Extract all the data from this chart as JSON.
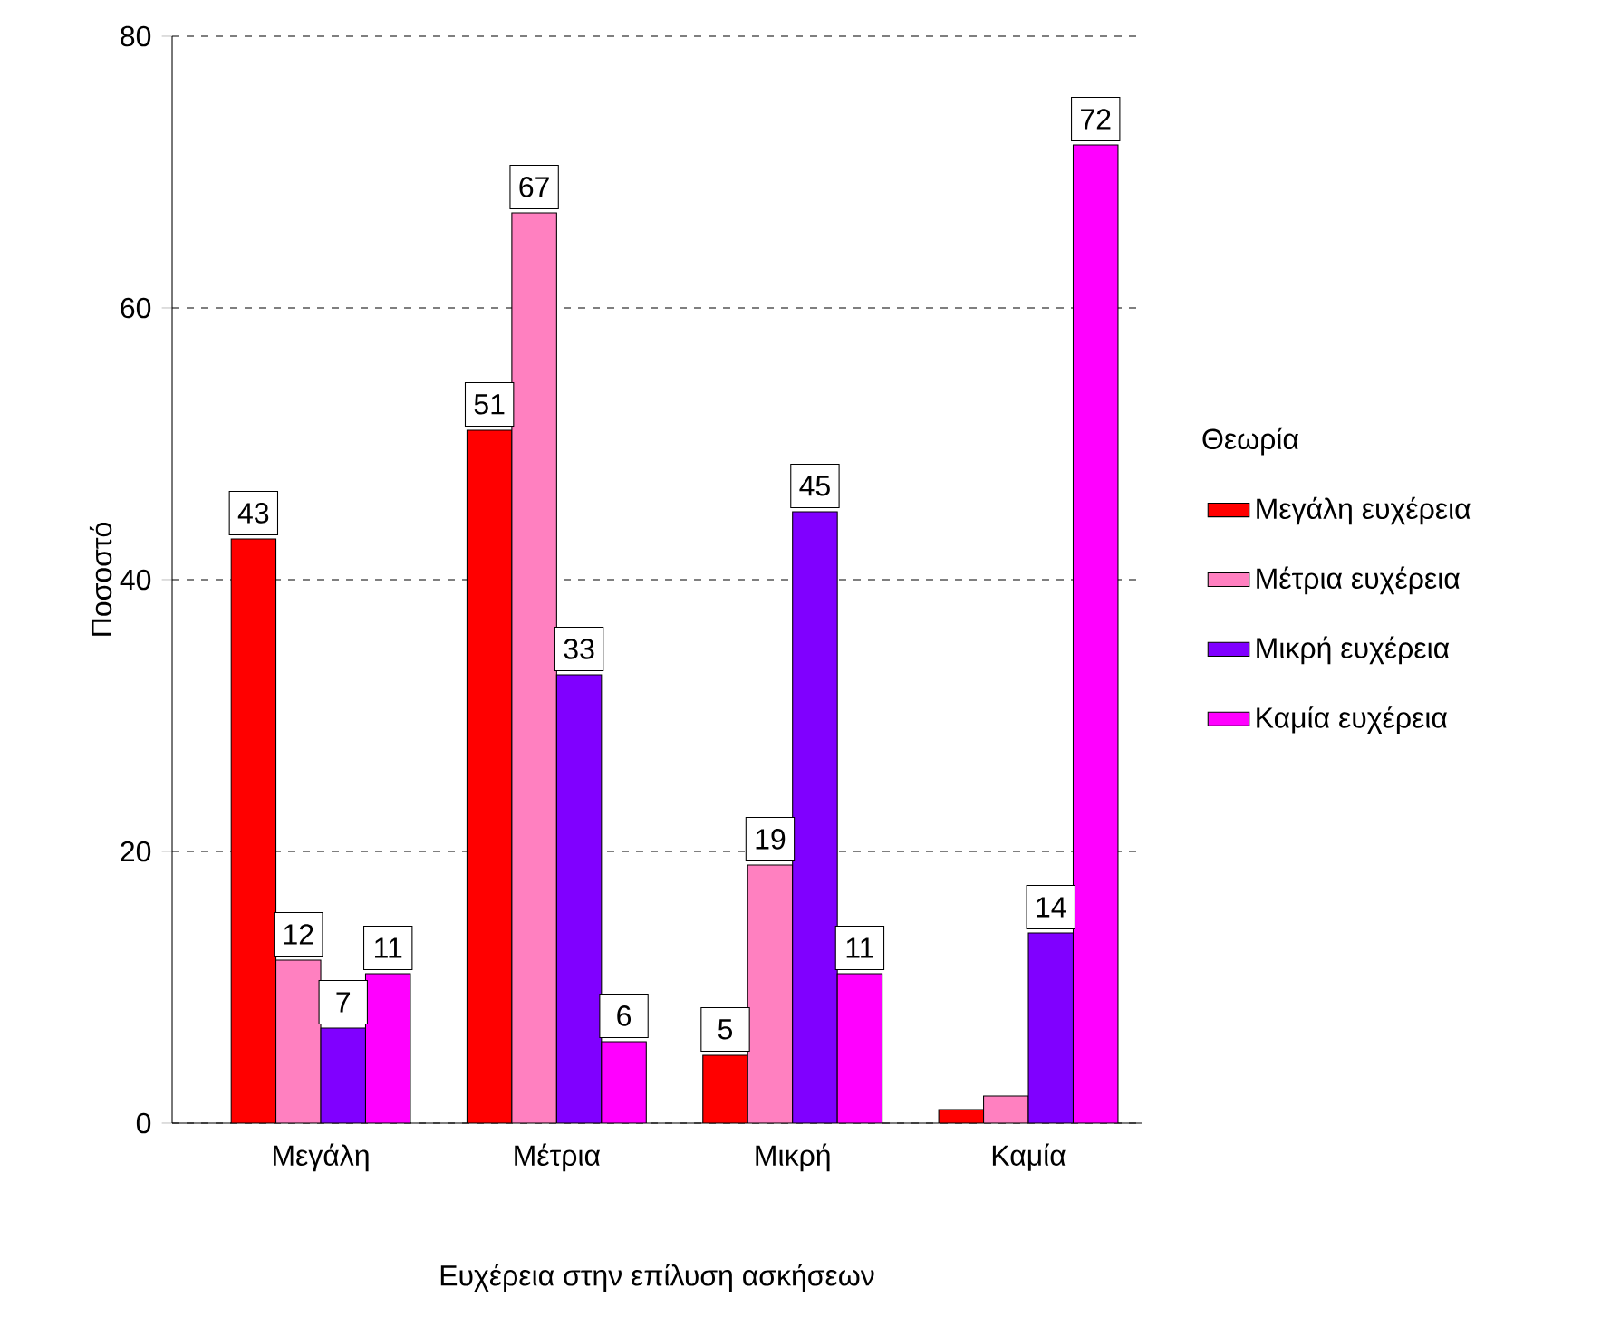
{
  "chart_data": {
    "type": "bar",
    "xlabel": "Ευχέρεια στην επίλυση ασκήσεων",
    "ylabel": "Ποσοστό",
    "legend_title": "Θεωρία",
    "legend": "right",
    "grid": "y",
    "categories": [
      "Μεγάλη",
      "Μέτρια",
      "Μικρή",
      "Καμία"
    ],
    "ylim": [
      0,
      80
    ],
    "yticks": [
      0,
      20,
      40,
      60,
      80
    ],
    "series": [
      {
        "name": "Μεγάλη ευχέρεια",
        "color": "#ff0000",
        "values": [
          43,
          51,
          5,
          1
        ],
        "value_labels": [
          "43",
          "51",
          "5",
          null
        ]
      },
      {
        "name": "Μέτρια ευχέρεια",
        "color": "#ff80c0",
        "values": [
          12,
          67,
          19,
          2
        ],
        "value_labels": [
          "12",
          "67",
          "19",
          null
        ]
      },
      {
        "name": "Μικρή ευχέρεια",
        "color": "#8000ff",
        "values": [
          7,
          33,
          45,
          14
        ],
        "value_labels": [
          "7",
          "33",
          "45",
          "14"
        ]
      },
      {
        "name": "Καμία ευχέρεια",
        "color": "#ff00ff",
        "values": [
          11,
          6,
          11,
          72
        ],
        "value_labels": [
          "11",
          "6",
          "11",
          "72"
        ]
      }
    ]
  }
}
